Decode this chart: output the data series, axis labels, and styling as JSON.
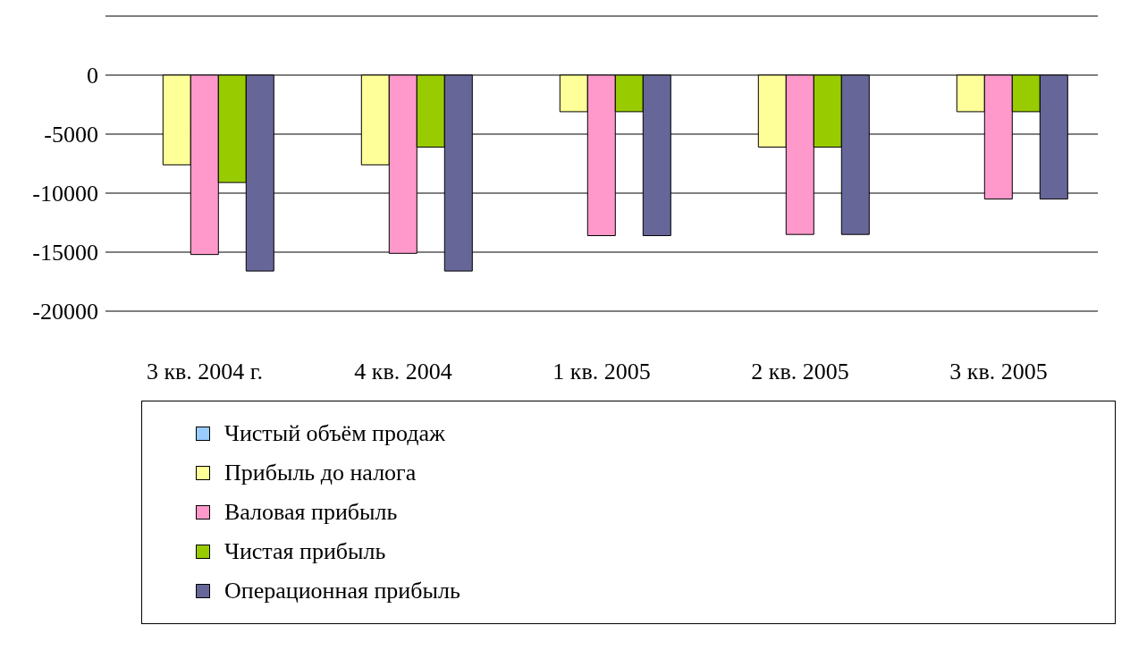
{
  "chart_data": {
    "type": "bar",
    "categories": [
      "3 кв. 2004 г.",
      "4 кв. 2004",
      "1 кв. 2005",
      "2 кв. 2005",
      "3 кв. 2005"
    ],
    "series": [
      {
        "name": "Чистый объём продаж",
        "color": "#99ccff",
        "values": [
          null,
          null,
          null,
          null,
          null
        ]
      },
      {
        "name": "Прибыль до налога",
        "color": "#ffff99",
        "values": [
          -7600,
          -7600,
          -3100,
          -6100,
          -3100
        ]
      },
      {
        "name": "Валовая прибыль",
        "color": "#ff99cc",
        "values": [
          -15200,
          -15100,
          -13600,
          -13500,
          -10500
        ]
      },
      {
        "name": "Чистая прибыль",
        "color": "#99cc00",
        "values": [
          -9100,
          -6100,
          -3100,
          -6100,
          -3100
        ]
      },
      {
        "name": "Операционная прибыль",
        "color": "#666699",
        "values": [
          -16600,
          -16600,
          -13600,
          -13500,
          -10500
        ]
      }
    ],
    "ylim": [
      -20000,
      5000
    ],
    "yticks": [
      -20000,
      -15000,
      -10000,
      -5000,
      0,
      {
        "value": 5000,
        "label": null
      }
    ],
    "grid": "y",
    "legend": "bottom"
  }
}
